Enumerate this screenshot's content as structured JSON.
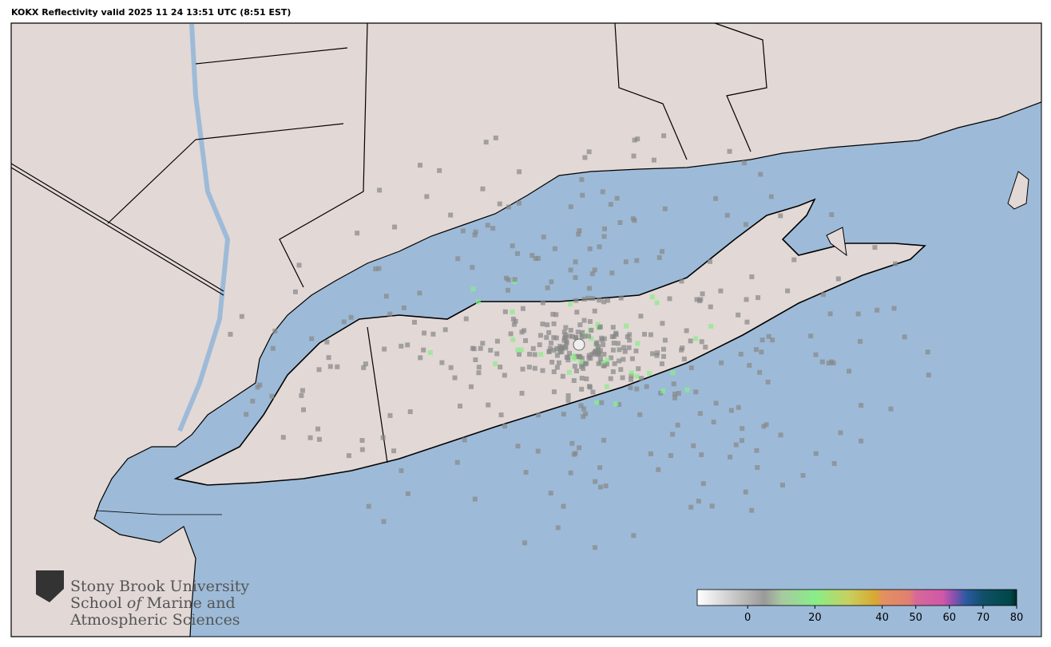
{
  "header": {
    "title": "KOKX Reflectivity valid 2025 11 24 13:51 UTC (8:51 EST)"
  },
  "logo": {
    "line1": "Stony Brook University",
    "line2": [
      "School",
      "of",
      "Marine and"
    ],
    "line3": "Atmospheric Sciences"
  },
  "colorbar": {
    "range": [
      -15,
      80
    ],
    "ticks": [
      0,
      20,
      40,
      50,
      60,
      70,
      80
    ],
    "stops": [
      {
        "value": -15,
        "color": "#ffffff"
      },
      {
        "value": 5,
        "color": "#9a9a9a"
      },
      {
        "value": 10,
        "color": "#a8c8a0"
      },
      {
        "value": 20,
        "color": "#88ee88"
      },
      {
        "value": 30,
        "color": "#c8d060"
      },
      {
        "value": 38,
        "color": "#d8a830"
      },
      {
        "value": 40,
        "color": "#e49060"
      },
      {
        "value": 48,
        "color": "#e08070"
      },
      {
        "value": 50,
        "color": "#d86898"
      },
      {
        "value": 58,
        "color": "#d058a8"
      },
      {
        "value": 61,
        "color": "#9050b0"
      },
      {
        "value": 65,
        "color": "#2a5aa0"
      },
      {
        "value": 70,
        "color": "#10506a"
      },
      {
        "value": 78,
        "color": "#004848"
      },
      {
        "value": 80,
        "color": "#002828"
      }
    ]
  }
}
